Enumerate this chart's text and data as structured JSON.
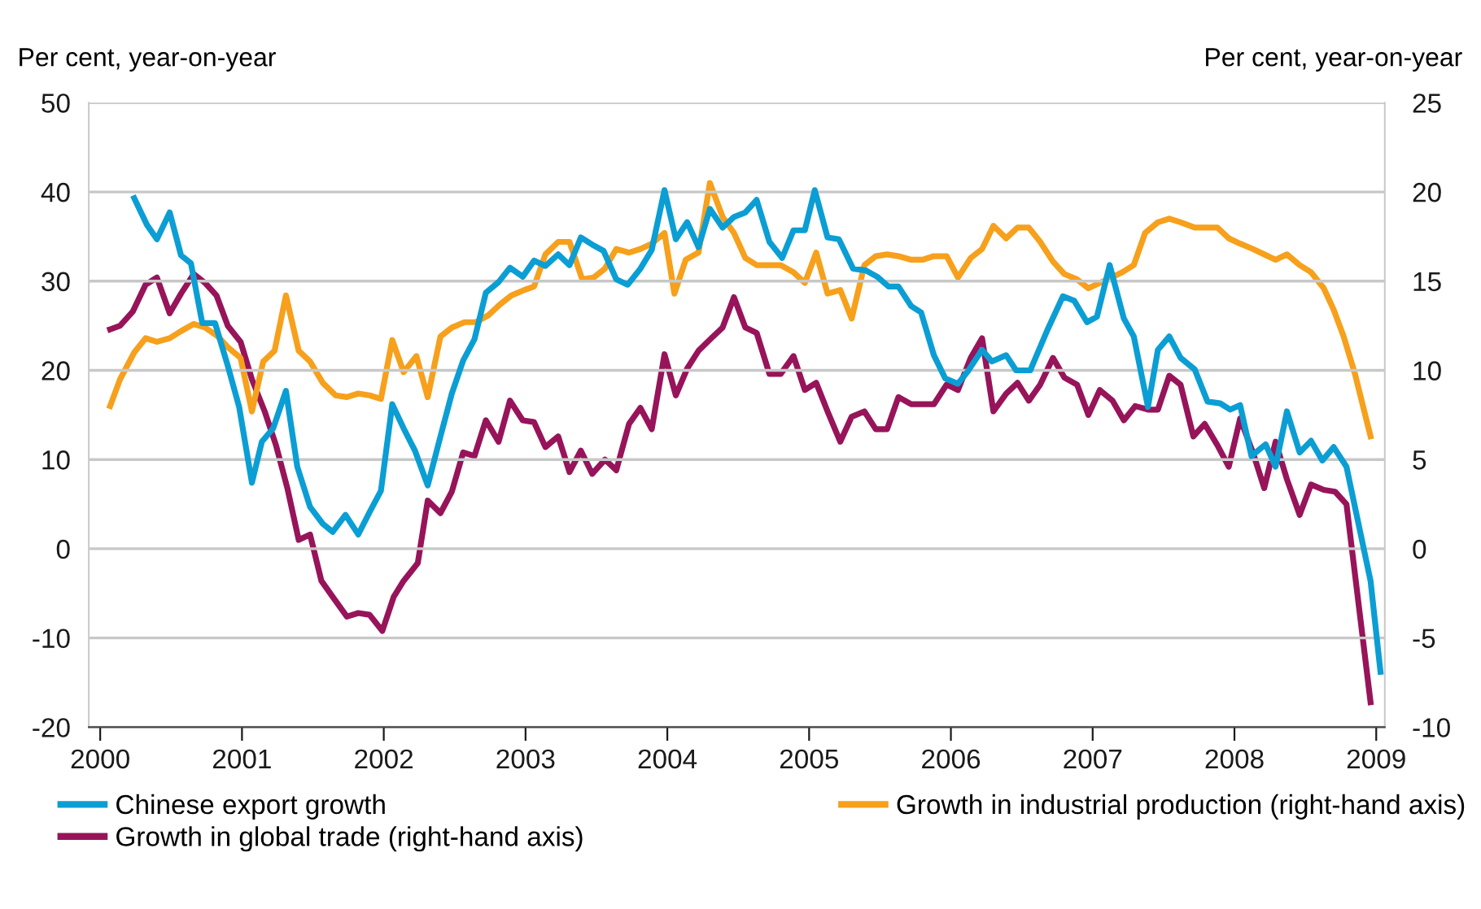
{
  "chart_data": {
    "type": "line",
    "ylabel": "Per cent, year-on-year",
    "y2label": "Per cent, year-on-year",
    "xlim": [
      1999.92,
      2009.06
    ],
    "xticks": [
      2000,
      2001,
      2002,
      2003,
      2004,
      2005,
      2006,
      2007,
      2008,
      2009
    ],
    "ylim": [
      -20,
      50
    ],
    "yticks": [
      -20,
      -10,
      0,
      10,
      20,
      30,
      40,
      50
    ],
    "y2lim": [
      -10,
      25
    ],
    "y2ticks": [
      -10,
      -5,
      0,
      5,
      10,
      15,
      20,
      25
    ],
    "grid": "y",
    "legend": "bottom",
    "marker": "none",
    "line_style": "solid",
    "series": [
      {
        "name": "Chinese export growth",
        "color": "#0b9ed4",
        "x": [
          2000.24,
          2000.33,
          2000.4,
          2000.49,
          2000.57,
          2000.64,
          2000.72,
          2000.81,
          2000.9,
          2000.98,
          2001.07,
          2001.14,
          2001.22,
          2001.31,
          2001.39,
          2001.48,
          2001.57,
          2001.64,
          2001.73,
          2001.82,
          2001.9,
          2001.98,
          2002.06,
          2002.14,
          2002.22,
          2002.31,
          2002.4,
          2002.48,
          2002.56,
          2002.64,
          2002.72,
          2002.81,
          2002.89,
          2002.98,
          2003.06,
          2003.14,
          2003.23,
          2003.31,
          2003.39,
          2003.47,
          2003.55,
          2003.64,
          2003.72,
          2003.81,
          2003.89,
          2003.98,
          2004.06,
          2004.14,
          2004.22,
          2004.3,
          2004.39,
          2004.47,
          2004.55,
          2004.63,
          2004.72,
          2004.81,
          2004.89,
          2004.97,
          2005.04,
          2005.13,
          2005.21,
          2005.31,
          2005.4,
          2005.48,
          2005.56,
          2005.63,
          2005.72,
          2005.79,
          2005.88,
          2005.96,
          2006.05,
          2006.12,
          2006.22,
          2006.29,
          2006.39,
          2006.46,
          2006.56,
          2006.68,
          2006.79,
          2006.87,
          2006.96,
          2007.03,
          2007.12,
          2007.22,
          2007.29,
          2007.39,
          2007.46,
          2007.54,
          2007.62,
          2007.72,
          2007.81,
          2007.9,
          2007.97,
          2008.04,
          2008.12,
          2008.22,
          2008.29,
          2008.37,
          2008.46,
          2008.54,
          2008.62,
          2008.7,
          2008.79,
          2008.96,
          2009.03
        ],
        "values": [
          39.3,
          36.3,
          34.7,
          37.7,
          32.9,
          32.0,
          25.3,
          25.3,
          20.5,
          15.9,
          7.4,
          12.0,
          13.5,
          17.7,
          9.2,
          4.7,
          2.8,
          1.9,
          3.8,
          1.6,
          4.1,
          6.5,
          16.2,
          13.5,
          11.0,
          7.1,
          12.6,
          17.4,
          21.1,
          23.5,
          28.7,
          29.9,
          31.5,
          30.5,
          32.3,
          31.7,
          33.0,
          31.8,
          34.9,
          34.1,
          33.4,
          30.2,
          29.6,
          31.4,
          33.5,
          40.2,
          34.7,
          36.6,
          33.8,
          38.1,
          36.0,
          37.2,
          37.7,
          39.1,
          34.4,
          32.6,
          35.7,
          35.7,
          40.2,
          34.9,
          34.7,
          31.4,
          31.2,
          30.5,
          29.4,
          29.4,
          27.2,
          26.5,
          21.7,
          19.1,
          18.5,
          19.9,
          22.3,
          21.0,
          21.7,
          20.0,
          20.0,
          24.5,
          28.3,
          27.8,
          25.4,
          26.0,
          31.8,
          25.8,
          23.8,
          15.9,
          22.3,
          23.8,
          21.4,
          20.1,
          16.5,
          16.3,
          15.6,
          16.1,
          10.4,
          11.7,
          9.2,
          15.4,
          10.8,
          12.1,
          9.9,
          11.4,
          9.2,
          -3.6,
          -13.8
        ]
      },
      {
        "name": "Growth in global trade (right-hand axis)",
        "color": "#97145a",
        "axis": "y2",
        "x": [
          2000.07,
          2000.14,
          2000.23,
          2000.32,
          2000.4,
          2000.49,
          2000.57,
          2000.66,
          2000.74,
          2000.82,
          2000.9,
          2000.99,
          2001.07,
          2001.16,
          2001.24,
          2001.32,
          2001.4,
          2001.48,
          2001.56,
          2001.64,
          2001.74,
          2001.82,
          2001.9,
          2001.99,
          2002.07,
          2002.14,
          2002.24,
          2002.31,
          2002.4,
          2002.48,
          2002.56,
          2002.64,
          2002.72,
          2002.81,
          2002.89,
          2002.98,
          2003.06,
          2003.14,
          2003.23,
          2003.31,
          2003.39,
          2003.47,
          2003.56,
          2003.64,
          2003.73,
          2003.81,
          2003.89,
          2003.98,
          2004.06,
          2004.14,
          2004.22,
          2004.31,
          2004.39,
          2004.47,
          2004.55,
          2004.63,
          2004.72,
          2004.8,
          2004.89,
          2004.97,
          2005.05,
          2005.13,
          2005.22,
          2005.3,
          2005.39,
          2005.47,
          2005.55,
          2005.63,
          2005.72,
          2005.8,
          2005.88,
          2005.97,
          2006.05,
          2006.14,
          2006.22,
          2006.3,
          2006.39,
          2006.47,
          2006.55,
          2006.63,
          2006.72,
          2006.8,
          2006.89,
          2006.97,
          2007.05,
          2007.14,
          2007.22,
          2007.3,
          2007.39,
          2007.46,
          2007.54,
          2007.62,
          2007.71,
          2007.79,
          2007.88,
          2007.96,
          2008.04,
          2008.13,
          2008.21,
          2008.29,
          2008.37,
          2008.46,
          2008.54,
          2008.63,
          2008.71,
          2008.79,
          2008.96
        ],
        "values": [
          12.3,
          12.5,
          13.3,
          14.8,
          15.2,
          13.2,
          14.3,
          15.4,
          14.9,
          14.2,
          12.5,
          11.6,
          9.5,
          7.7,
          5.8,
          3.4,
          0.5,
          0.8,
          -1.8,
          -2.7,
          -3.8,
          -3.6,
          -3.7,
          -4.6,
          -2.7,
          -1.8,
          -0.8,
          2.7,
          2.0,
          3.2,
          5.4,
          5.2,
          7.2,
          6.0,
          8.3,
          7.2,
          7.1,
          5.7,
          6.3,
          4.3,
          5.5,
          4.2,
          5.0,
          4.4,
          7.0,
          7.9,
          6.7,
          10.9,
          8.6,
          10.1,
          11.1,
          11.8,
          12.4,
          14.1,
          12.4,
          12.1,
          9.8,
          9.8,
          10.8,
          8.9,
          9.3,
          7.7,
          6.0,
          7.4,
          7.7,
          6.7,
          6.7,
          8.5,
          8.1,
          8.1,
          8.1,
          9.2,
          8.9,
          10.7,
          11.8,
          7.7,
          8.7,
          9.3,
          8.3,
          9.2,
          10.7,
          9.6,
          9.2,
          7.5,
          8.9,
          8.3,
          7.2,
          8.0,
          7.8,
          7.8,
          9.7,
          9.2,
          6.3,
          7.0,
          5.8,
          4.6,
          7.3,
          5.4,
          3.4,
          6.0,
          3.9,
          1.9,
          3.6,
          3.3,
          3.2,
          2.5,
          -8.6
        ]
      },
      {
        "name": "Growth in industrial production (right-hand axis)",
        "color": "#f7a01c",
        "axis": "y2",
        "x": [
          2000.07,
          2000.14,
          2000.24,
          2000.32,
          2000.4,
          2000.49,
          2000.57,
          2000.66,
          2000.74,
          2000.83,
          2000.9,
          2000.99,
          2001.07,
          2001.15,
          2001.23,
          2001.31,
          2001.4,
          2001.48,
          2001.57,
          2001.66,
          2001.74,
          2001.82,
          2001.9,
          2001.98,
          2002.06,
          2002.14,
          2002.23,
          2002.31,
          2002.4,
          2002.48,
          2002.57,
          2002.65,
          2002.74,
          2002.82,
          2002.9,
          2002.99,
          2003.06,
          2003.14,
          2003.23,
          2003.31,
          2003.4,
          2003.48,
          2003.56,
          2003.64,
          2003.73,
          2003.81,
          2003.89,
          2003.98,
          2004.05,
          2004.13,
          2004.22,
          2004.3,
          2004.39,
          2004.47,
          2004.55,
          2004.63,
          2004.72,
          2004.8,
          2004.89,
          2004.97,
          2005.05,
          2005.13,
          2005.22,
          2005.3,
          2005.39,
          2005.47,
          2005.55,
          2005.63,
          2005.72,
          2005.8,
          2005.88,
          2005.97,
          2006.05,
          2006.14,
          2006.22,
          2006.3,
          2006.39,
          2006.47,
          2006.55,
          2006.63,
          2006.72,
          2006.8,
          2006.89,
          2006.97,
          2007.05,
          2007.13,
          2007.21,
          2007.29,
          2007.37,
          2007.46,
          2007.54,
          2007.62,
          2007.72,
          2007.79,
          2007.88,
          2007.96,
          2008.04,
          2008.13,
          2008.21,
          2008.29,
          2008.37,
          2008.46,
          2008.54,
          2008.63,
          2008.7,
          2008.77,
          2008.85,
          2008.96
        ],
        "values": [
          8.0,
          9.5,
          11.0,
          11.8,
          11.6,
          11.8,
          12.2,
          12.6,
          12.4,
          11.9,
          11.3,
          10.7,
          7.7,
          10.5,
          11.1,
          14.2,
          11.1,
          10.5,
          9.3,
          8.6,
          8.5,
          8.7,
          8.6,
          8.4,
          11.7,
          9.9,
          10.8,
          8.5,
          11.9,
          12.4,
          12.7,
          12.7,
          13.1,
          13.7,
          14.2,
          14.5,
          14.7,
          16.5,
          17.2,
          17.2,
          15.1,
          15.2,
          15.7,
          16.8,
          16.6,
          16.8,
          17.1,
          17.7,
          14.3,
          16.2,
          16.6,
          20.5,
          18.6,
          17.7,
          16.3,
          15.9,
          15.9,
          15.9,
          15.5,
          14.9,
          16.6,
          14.3,
          14.5,
          12.9,
          15.9,
          16.4,
          16.5,
          16.4,
          16.2,
          16.2,
          16.4,
          16.4,
          15.2,
          16.3,
          16.8,
          18.1,
          17.4,
          18.0,
          18.0,
          17.2,
          16.1,
          15.4,
          15.1,
          14.6,
          14.9,
          15.2,
          15.5,
          15.9,
          17.7,
          18.3,
          18.5,
          18.3,
          18.0,
          18.0,
          18.0,
          17.4,
          17.1,
          16.8,
          16.5,
          16.2,
          16.5,
          15.9,
          15.5,
          14.6,
          13.4,
          11.9,
          9.8,
          6.3
        ]
      }
    ]
  }
}
